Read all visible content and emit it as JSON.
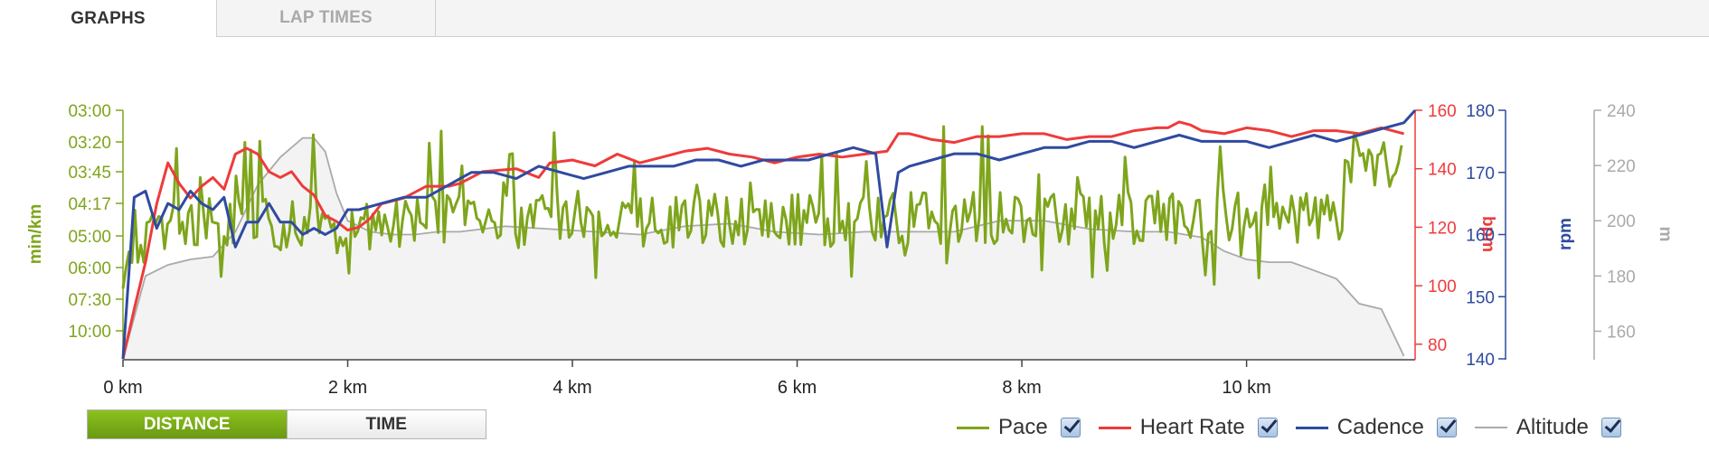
{
  "tabs": [
    {
      "label": "GRAPHS",
      "active": true
    },
    {
      "label": "LAP TIMES",
      "active": false
    }
  ],
  "toggle": {
    "distance_label": "DISTANCE",
    "time_label": "TIME",
    "selected": "distance"
  },
  "legend": [
    {
      "label": "Pace",
      "color": "#7ea51c",
      "checked": true
    },
    {
      "label": "Heart Rate",
      "color": "#ee3b3b",
      "checked": true
    },
    {
      "label": "Cadence",
      "color": "#2f4aa0",
      "checked": true
    },
    {
      "label": "Altitude",
      "color": "#aaaaaa",
      "checked": true
    }
  ],
  "chart_data": {
    "type": "line",
    "x_axis": {
      "unit": "km",
      "range": [
        0,
        11.5
      ],
      "ticks": [
        0,
        2,
        4,
        6,
        8,
        10
      ],
      "tick_labels": [
        "0 km",
        "2 km",
        "4 km",
        "6 km",
        "8 km",
        "10 km"
      ]
    },
    "axes": {
      "pace": {
        "label": "min/km",
        "color": "#7ea51c",
        "tick_labels": [
          "03:00",
          "03:20",
          "03:45",
          "04:17",
          "05:00",
          "06:00",
          "07:30",
          "10:00"
        ],
        "inverted": true
      },
      "heart_rate": {
        "label": "bpm",
        "color": "#ee3b3b",
        "range": [
          75,
          160
        ],
        "ticks": [
          80,
          100,
          120,
          140,
          160
        ]
      },
      "cadence": {
        "label": "rpm",
        "color": "#2f4aa0",
        "range": [
          140,
          180
        ],
        "ticks": [
          140,
          150,
          160,
          170,
          180
        ]
      },
      "altitude": {
        "label": "m",
        "color": "#aaaaaa",
        "range": [
          150,
          240
        ],
        "ticks": [
          160,
          180,
          200,
          220,
          240
        ]
      }
    },
    "series": [
      {
        "name": "Heart Rate",
        "axis": "heart_rate",
        "x": [
          0,
          0.1,
          0.2,
          0.3,
          0.4,
          0.5,
          0.6,
          0.7,
          0.8,
          0.9,
          1.0,
          1.1,
          1.2,
          1.3,
          1.4,
          1.5,
          1.6,
          1.7,
          1.8,
          1.9,
          2.0,
          2.1,
          2.2,
          2.3,
          2.5,
          2.7,
          2.9,
          3.0,
          3.2,
          3.5,
          3.7,
          3.8,
          4.0,
          4.2,
          4.4,
          4.6,
          4.8,
          5.0,
          5.2,
          5.4,
          5.6,
          5.8,
          6.0,
          6.2,
          6.4,
          6.6,
          6.8,
          6.9,
          7.0,
          7.2,
          7.4,
          7.6,
          7.8,
          8.0,
          8.2,
          8.4,
          8.6,
          8.8,
          9.0,
          9.2,
          9.3,
          9.4,
          9.5,
          9.6,
          9.8,
          10.0,
          10.2,
          10.4,
          10.6,
          10.8,
          11.0,
          11.2,
          11.4
        ],
        "values": [
          75,
          92,
          108,
          128,
          142,
          135,
          130,
          134,
          137,
          133,
          145,
          147,
          145,
          139,
          137,
          139,
          134,
          131,
          124,
          122,
          119,
          120,
          123,
          128,
          130,
          134,
          134,
          135,
          139,
          140,
          137,
          142,
          143,
          141,
          145,
          142,
          144,
          146,
          147,
          145,
          144,
          142,
          144,
          145,
          144,
          145,
          146,
          152,
          152,
          150,
          149,
          151,
          151,
          152,
          152,
          150,
          151,
          151,
          153,
          154,
          154,
          156,
          155,
          153,
          152,
          154,
          153,
          151,
          153,
          153,
          152,
          154,
          152
        ]
      },
      {
        "name": "Cadence",
        "axis": "cadence",
        "x": [
          0,
          0.1,
          0.2,
          0.3,
          0.4,
          0.5,
          0.6,
          0.7,
          0.8,
          0.9,
          1.0,
          1.1,
          1.2,
          1.3,
          1.4,
          1.5,
          1.6,
          1.7,
          1.8,
          1.9,
          2.0,
          2.1,
          2.3,
          2.5,
          2.7,
          2.9,
          3.0,
          3.1,
          3.3,
          3.5,
          3.7,
          3.9,
          4.1,
          4.3,
          4.5,
          4.7,
          4.9,
          5.1,
          5.3,
          5.5,
          5.7,
          5.9,
          6.1,
          6.3,
          6.5,
          6.7,
          6.8,
          6.9,
          7.0,
          7.2,
          7.4,
          7.6,
          7.8,
          8.0,
          8.2,
          8.4,
          8.6,
          8.8,
          9.0,
          9.2,
          9.4,
          9.6,
          9.8,
          10.0,
          10.2,
          10.4,
          10.6,
          10.8,
          11.0,
          11.2,
          11.4,
          11.5
        ],
        "values": [
          140,
          166,
          167,
          161,
          165,
          164,
          167,
          165,
          164,
          166,
          158,
          162,
          162,
          165,
          162,
          162,
          160,
          161,
          160,
          161,
          164,
          164,
          165,
          166,
          166,
          168,
          169,
          170,
          170,
          169,
          171,
          170,
          169,
          170,
          171,
          171,
          171,
          172,
          172,
          171,
          172,
          172,
          172,
          173,
          174,
          173,
          158,
          170,
          171,
          172,
          173,
          173,
          172,
          173,
          174,
          174,
          175,
          175,
          174,
          175,
          176,
          175,
          175,
          175,
          174,
          175,
          176,
          175,
          176,
          177,
          178,
          180
        ]
      },
      {
        "name": "Altitude",
        "axis": "altitude",
        "x": [
          0,
          0.2,
          0.4,
          0.6,
          0.8,
          1.0,
          1.2,
          1.4,
          1.6,
          1.7,
          1.8,
          1.9,
          2.0,
          2.2,
          2.4,
          2.6,
          2.8,
          3.0,
          3.4,
          3.8,
          4.2,
          4.6,
          5.0,
          5.4,
          5.8,
          6.2,
          6.6,
          7.0,
          7.4,
          7.8,
          8.2,
          8.6,
          9.0,
          9.3,
          9.6,
          9.8,
          10.0,
          10.2,
          10.4,
          10.6,
          10.8,
          11.0,
          11.2,
          11.4
        ],
        "values": [
          150,
          180,
          184,
          186,
          187,
          196,
          213,
          223,
          230,
          230,
          225,
          210,
          200,
          196,
          195,
          195,
          196,
          196,
          198,
          197,
          196,
          195,
          198,
          199,
          196,
          195,
          196,
          196,
          196,
          200,
          200,
          197,
          196,
          196,
          194,
          189,
          186,
          185,
          185,
          182,
          179,
          170,
          168,
          151
        ]
      }
    ]
  }
}
